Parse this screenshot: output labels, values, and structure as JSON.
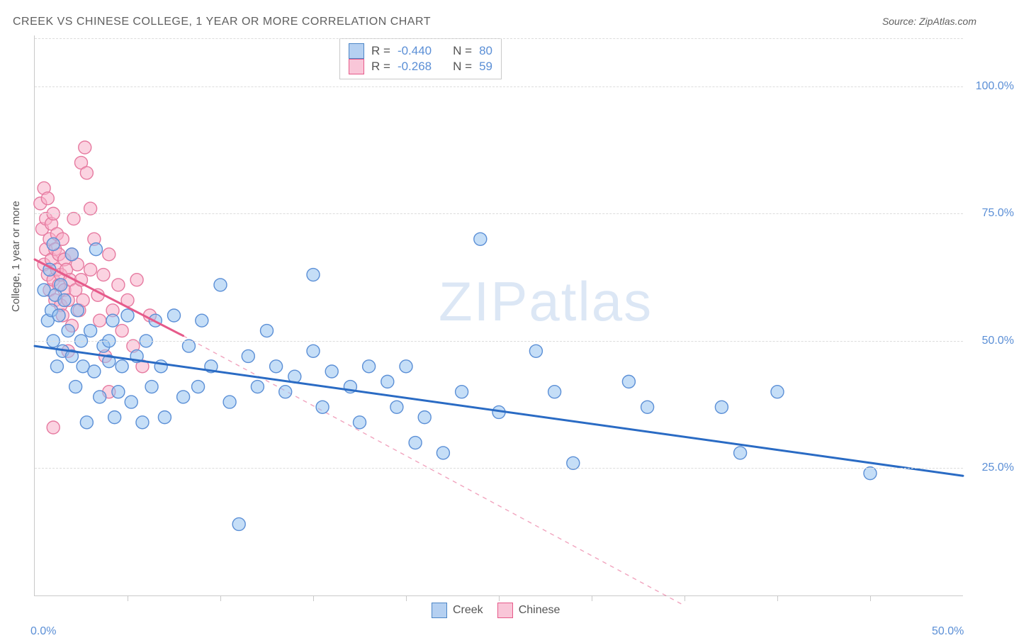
{
  "title": "CREEK VS CHINESE COLLEGE, 1 YEAR OR MORE CORRELATION CHART",
  "source": "Source: ZipAtlas.com",
  "watermark": "ZIPatlas",
  "chart": {
    "type": "scatter",
    "background_color": "#ffffff",
    "grid_color": "#dcdcdc",
    "axis_color": "#c9c9c9",
    "tick_label_color": "#5b8fd6",
    "label_color": "#555555",
    "ylabel": "College, 1 year or more",
    "label_fontsize": 15,
    "xlim": [
      0,
      50
    ],
    "ylim": [
      0,
      110
    ],
    "y_ticks": [
      25,
      50,
      75,
      100
    ],
    "y_tick_labels": [
      "25.0%",
      "50.0%",
      "75.0%",
      "100.0%"
    ],
    "x_ticks_minor": [
      5,
      10,
      15,
      20,
      25,
      30,
      35,
      40,
      45
    ],
    "x_tick_labels": [
      {
        "pos": 0,
        "label": "0.0%"
      },
      {
        "pos": 50,
        "label": "50.0%"
      }
    ],
    "watermark_color": "rgba(130,170,220,0.28)",
    "legend_top": {
      "rows": [
        {
          "swatch": "blue",
          "r_label": "R =",
          "r_value": "-0.440",
          "n_label": "N =",
          "n_value": "80"
        },
        {
          "swatch": "pink",
          "r_label": "R =",
          "r_value": "-0.268",
          "n_label": "N =",
          "n_value": "59"
        }
      ]
    },
    "legend_bottom": [
      {
        "swatch": "blue",
        "label": "Creek"
      },
      {
        "swatch": "pink",
        "label": "Chinese"
      }
    ],
    "series": [
      {
        "name": "Creek",
        "marker_color_fill": "rgba(150,195,240,0.55)",
        "marker_color_stroke": "#5b8fd6",
        "marker_radius": 9,
        "line_color": "#2a6bc4",
        "line_width": 3,
        "line_dash": "none",
        "trend": {
          "x1": 0,
          "y1": 49,
          "x2": 50,
          "y2": 23.5
        },
        "points": [
          [
            0.5,
            60
          ],
          [
            0.7,
            54
          ],
          [
            0.8,
            64
          ],
          [
            0.9,
            56
          ],
          [
            1.0,
            69
          ],
          [
            1.0,
            50
          ],
          [
            1.1,
            59
          ],
          [
            1.2,
            45
          ],
          [
            1.3,
            55
          ],
          [
            1.4,
            61
          ],
          [
            1.5,
            48
          ],
          [
            1.6,
            58
          ],
          [
            1.8,
            52
          ],
          [
            2.0,
            47
          ],
          [
            2.0,
            67
          ],
          [
            2.2,
            41
          ],
          [
            2.3,
            56
          ],
          [
            2.5,
            50
          ],
          [
            2.6,
            45
          ],
          [
            2.8,
            34
          ],
          [
            3.0,
            52
          ],
          [
            3.2,
            44
          ],
          [
            3.3,
            68
          ],
          [
            3.5,
            39
          ],
          [
            3.7,
            49
          ],
          [
            4.0,
            46
          ],
          [
            4.0,
            50
          ],
          [
            4.2,
            54
          ],
          [
            4.3,
            35
          ],
          [
            4.5,
            40
          ],
          [
            4.7,
            45
          ],
          [
            5.0,
            55
          ],
          [
            5.2,
            38
          ],
          [
            5.5,
            47
          ],
          [
            5.8,
            34
          ],
          [
            6.0,
            50
          ],
          [
            6.3,
            41
          ],
          [
            6.5,
            54
          ],
          [
            6.8,
            45
          ],
          [
            7.0,
            35
          ],
          [
            7.5,
            55
          ],
          [
            8.0,
            39
          ],
          [
            8.3,
            49
          ],
          [
            8.8,
            41
          ],
          [
            9.0,
            54
          ],
          [
            9.5,
            45
          ],
          [
            10.0,
            61
          ],
          [
            10.5,
            38
          ],
          [
            11.0,
            14
          ],
          [
            11.5,
            47
          ],
          [
            12.0,
            41
          ],
          [
            12.5,
            52
          ],
          [
            13.0,
            45
          ],
          [
            13.5,
            40
          ],
          [
            14.0,
            43
          ],
          [
            15.0,
            48
          ],
          [
            15.0,
            63
          ],
          [
            15.5,
            37
          ],
          [
            16.0,
            44
          ],
          [
            17.0,
            41
          ],
          [
            17.5,
            34
          ],
          [
            18.0,
            45
          ],
          [
            19.0,
            42
          ],
          [
            19.5,
            37
          ],
          [
            20.0,
            45
          ],
          [
            20.5,
            30
          ],
          [
            21.0,
            35
          ],
          [
            22.0,
            28
          ],
          [
            23.0,
            40
          ],
          [
            24.0,
            70
          ],
          [
            25.0,
            36
          ],
          [
            27.0,
            48
          ],
          [
            28.0,
            40
          ],
          [
            29.0,
            26
          ],
          [
            32.0,
            42
          ],
          [
            33.0,
            37
          ],
          [
            37.0,
            37
          ],
          [
            40.0,
            40
          ],
          [
            45.0,
            24
          ],
          [
            38.0,
            28
          ]
        ]
      },
      {
        "name": "Chinese",
        "marker_color_fill": "rgba(248,175,200,0.55)",
        "marker_color_stroke": "#e67aa0",
        "marker_radius": 9,
        "line_color": "#e65a8a",
        "line_width": 3,
        "line_dash": "none",
        "dash_extension": {
          "x1": 8,
          "y1": 51,
          "x2": 35,
          "y2": -2,
          "dash": "6,6",
          "width": 1.4
        },
        "trend": {
          "x1": 0,
          "y1": 66,
          "x2": 8,
          "y2": 51
        },
        "points": [
          [
            0.3,
            77
          ],
          [
            0.4,
            72
          ],
          [
            0.5,
            80
          ],
          [
            0.5,
            65
          ],
          [
            0.6,
            74
          ],
          [
            0.6,
            68
          ],
          [
            0.7,
            63
          ],
          [
            0.7,
            78
          ],
          [
            0.8,
            70
          ],
          [
            0.8,
            60
          ],
          [
            0.9,
            73
          ],
          [
            0.9,
            66
          ],
          [
            1.0,
            62
          ],
          [
            1.0,
            75
          ],
          [
            1.1,
            68
          ],
          [
            1.1,
            58
          ],
          [
            1.2,
            71
          ],
          [
            1.2,
            64
          ],
          [
            1.3,
            61
          ],
          [
            1.3,
            67
          ],
          [
            1.4,
            57
          ],
          [
            1.4,
            63
          ],
          [
            1.5,
            70
          ],
          [
            1.5,
            55
          ],
          [
            1.6,
            66
          ],
          [
            1.6,
            60
          ],
          [
            1.7,
            64
          ],
          [
            1.8,
            58
          ],
          [
            1.8,
            48
          ],
          [
            1.9,
            62
          ],
          [
            2.0,
            67
          ],
          [
            2.0,
            53
          ],
          [
            2.1,
            74
          ],
          [
            2.2,
            60
          ],
          [
            2.3,
            65
          ],
          [
            2.4,
            56
          ],
          [
            2.5,
            62
          ],
          [
            2.5,
            85
          ],
          [
            2.6,
            58
          ],
          [
            2.7,
            88
          ],
          [
            2.8,
            83
          ],
          [
            3.0,
            76
          ],
          [
            3.0,
            64
          ],
          [
            3.2,
            70
          ],
          [
            3.4,
            59
          ],
          [
            3.5,
            54
          ],
          [
            3.7,
            63
          ],
          [
            3.8,
            47
          ],
          [
            4.0,
            40
          ],
          [
            4.0,
            67
          ],
          [
            4.2,
            56
          ],
          [
            4.5,
            61
          ],
          [
            4.7,
            52
          ],
          [
            5.0,
            58
          ],
          [
            5.3,
            49
          ],
          [
            5.5,
            62
          ],
          [
            5.8,
            45
          ],
          [
            6.2,
            55
          ],
          [
            1.0,
            33
          ]
        ]
      }
    ]
  }
}
